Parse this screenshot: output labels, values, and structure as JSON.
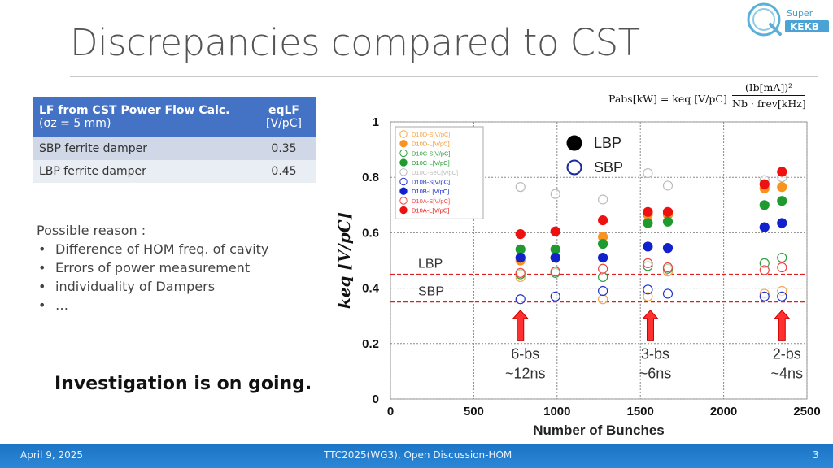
{
  "slide": {
    "title": "Discrepancies compared to CST",
    "logo_text_line1": "Super",
    "logo_text_line2": "KEKB",
    "investigation": "Investigation is on going."
  },
  "formula": {
    "lhs": "Pabs[kW] = keq [V/pC]",
    "numerator": "(Ib[mA])²",
    "denominator": "Nb · frev[kHz]"
  },
  "table": {
    "header_col1_line1": "LF from CST Power Flow Calc.",
    "header_col1_line2": "(σz = 5 mm)",
    "header_col2_line1": "eqLF",
    "header_col2_line2": "[V/pC]",
    "rows": [
      {
        "label": "SBP ferrite damper",
        "value": "0.35"
      },
      {
        "label": "LBP ferrite damper",
        "value": "0.45"
      }
    ]
  },
  "reasons": {
    "heading": "Possible reason :",
    "items": [
      "Difference of HOM freq. of cavity",
      "Errors of power measurement",
      "individuality of Dampers",
      "…"
    ]
  },
  "footer": {
    "date": "April 9, 2025",
    "center": "TTC2025(WG3), Open Discussion-HOM",
    "page": "3"
  },
  "chart_data": {
    "type": "scatter",
    "xlabel": "Number of Bunches",
    "ylabel": "keq [V/pC]",
    "xlim": [
      0,
      2500
    ],
    "ylim": [
      0,
      1
    ],
    "xticks": [
      "0",
      "500",
      "1000",
      "1500",
      "2000",
      "2500"
    ],
    "yticks": [
      "0",
      "0.2",
      "0.4",
      "0.6",
      "0.8",
      "1"
    ],
    "grid": true,
    "legend_position": "top-left",
    "series": [
      {
        "name": "D10D-S[V/pC]",
        "color": "#f5a64a",
        "filled": false,
        "points": [
          [
            780,
            0.44
          ],
          [
            990,
            0.46
          ],
          [
            1275,
            0.36
          ],
          [
            1545,
            0.37
          ],
          [
            1665,
            0.46
          ],
          [
            2245,
            0.38
          ],
          [
            2350,
            0.39
          ]
        ]
      },
      {
        "name": "D10D-L[V/pC]",
        "color": "#f7931e",
        "filled": true,
        "points": [
          [
            780,
            0.5
          ],
          [
            990,
            0.51
          ],
          [
            1275,
            0.585
          ],
          [
            1545,
            0.665
          ],
          [
            1665,
            0.665
          ],
          [
            2245,
            0.76
          ],
          [
            2350,
            0.765
          ]
        ]
      },
      {
        "name": "D10C-S[V/pC]",
        "color": "#2e9e3e",
        "filled": false,
        "points": [
          [
            780,
            0.45
          ],
          [
            990,
            0.455
          ],
          [
            1275,
            0.44
          ],
          [
            1545,
            0.48
          ],
          [
            1665,
            0.47
          ],
          [
            2245,
            0.49
          ],
          [
            2350,
            0.51
          ]
        ]
      },
      {
        "name": "D10C-L[V/pC]",
        "color": "#1e9a2e",
        "filled": true,
        "points": [
          [
            780,
            0.54
          ],
          [
            990,
            0.54
          ],
          [
            1275,
            0.56
          ],
          [
            1545,
            0.635
          ],
          [
            1665,
            0.64
          ],
          [
            2245,
            0.7
          ],
          [
            2350,
            0.715
          ]
        ]
      },
      {
        "name": "D10C-SеC[V/pC]",
        "color": "#bbbbbb",
        "filled": false,
        "points": [
          [
            780,
            0.765
          ],
          [
            990,
            0.74
          ],
          [
            1275,
            0.72
          ],
          [
            1545,
            0.815
          ],
          [
            1665,
            0.77
          ],
          [
            2245,
            0.79
          ],
          [
            2350,
            0.8
          ]
        ]
      },
      {
        "name": "D10B-S[V/pC]",
        "color": "#2233cc",
        "filled": false,
        "points": [
          [
            780,
            0.36
          ],
          [
            990,
            0.37
          ],
          [
            1275,
            0.39
          ],
          [
            1545,
            0.395
          ],
          [
            1665,
            0.38
          ],
          [
            2245,
            0.37
          ],
          [
            2350,
            0.37
          ]
        ]
      },
      {
        "name": "D10B-L[V/pC]",
        "color": "#1122cc",
        "filled": true,
        "points": [
          [
            780,
            0.51
          ],
          [
            990,
            0.51
          ],
          [
            1275,
            0.51
          ],
          [
            1545,
            0.55
          ],
          [
            1665,
            0.545
          ],
          [
            2245,
            0.62
          ],
          [
            2350,
            0.635
          ]
        ]
      },
      {
        "name": "D10A-S[V/pC]",
        "color": "#ee4444",
        "filled": false,
        "points": [
          [
            780,
            0.455
          ],
          [
            990,
            0.46
          ],
          [
            1275,
            0.47
          ],
          [
            1545,
            0.49
          ],
          [
            1665,
            0.475
          ],
          [
            2245,
            0.465
          ],
          [
            2350,
            0.475
          ]
        ]
      },
      {
        "name": "D10A-L[V/pC]",
        "color": "#ee1111",
        "filled": true,
        "points": [
          [
            780,
            0.595
          ],
          [
            990,
            0.605
          ],
          [
            1275,
            0.645
          ],
          [
            1545,
            0.675
          ],
          [
            1665,
            0.675
          ],
          [
            2245,
            0.775
          ],
          [
            2350,
            0.82
          ]
        ]
      }
    ],
    "big_legend": [
      {
        "label": "LBP",
        "filled": true
      },
      {
        "label": "SBP",
        "filled": false
      }
    ],
    "reference_lines": [
      {
        "label": "LBP",
        "y": 0.45,
        "color": "#e02020"
      },
      {
        "label": "SBP",
        "y": 0.35,
        "color": "#e02020"
      }
    ],
    "annotations": [
      {
        "x": 780,
        "line1": "6-bs",
        "line2": "~12ns"
      },
      {
        "x": 1560,
        "line1": "3-bs",
        "line2": "~6ns"
      },
      {
        "x": 2350,
        "line1": "2-bs",
        "line2": "~4ns"
      }
    ]
  }
}
